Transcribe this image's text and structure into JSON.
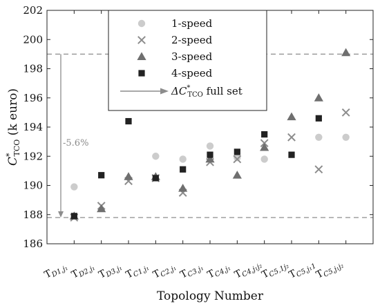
{
  "chart_data": {
    "type": "scatter",
    "xlabel": "Topology Number",
    "ylabel": {
      "main": "C",
      "sup": "*",
      "sub": "TCO",
      "unit": " (k euro)"
    },
    "ylim": [
      186,
      202
    ],
    "yticks": [
      186,
      188,
      190,
      192,
      194,
      196,
      198,
      200,
      202
    ],
    "grid": false,
    "legend_position": "top-center",
    "categories": [
      {
        "main": "T",
        "sub": "D1,j₁"
      },
      {
        "main": "T",
        "sub": "D2,j₁"
      },
      {
        "main": "T",
        "sub": "D3,j₁"
      },
      {
        "main": "T",
        "sub": "C1,j₁"
      },
      {
        "main": "T",
        "sub": "C2,j₁"
      },
      {
        "main": "T",
        "sub": "C3,j₁"
      },
      {
        "main": "T",
        "sub": "C4,j₁"
      },
      {
        "main": "T",
        "sub": "C4,j₁j₂"
      },
      {
        "main": "T",
        "sub": "C5,1j₂"
      },
      {
        "main": "T",
        "sub": "C5,j₁1"
      },
      {
        "main": "T",
        "sub": "C5,j₁j₂"
      }
    ],
    "series": [
      {
        "name": "1-speed",
        "marker": "circle",
        "color": "#cccccc",
        "values": [
          189.9,
          null,
          null,
          192.0,
          191.8,
          192.7,
          191.9,
          191.8,
          null,
          193.3,
          193.3
        ]
      },
      {
        "name": "2-speed",
        "marker": "x",
        "color": "#8c8c8c",
        "values": [
          187.8,
          188.6,
          190.3,
          190.5,
          189.5,
          191.6,
          191.8,
          192.9,
          193.3,
          191.1,
          195.0
        ]
      },
      {
        "name": "3-speed",
        "marker": "triangle",
        "color": "#6f6f6f",
        "values": [
          187.9,
          188.4,
          190.6,
          190.6,
          189.8,
          191.8,
          190.7,
          192.6,
          194.7,
          196.0,
          199.1
        ]
      },
      {
        "name": "4-speed",
        "marker": "square",
        "color": "#222222",
        "values": [
          187.9,
          190.7,
          194.4,
          190.5,
          191.1,
          192.1,
          192.3,
          193.5,
          192.1,
          194.6,
          null
        ]
      }
    ],
    "reference_lines": [
      199.0,
      187.8
    ],
    "annotation": {
      "label": "-5.6%",
      "from": 199.0,
      "to": 187.8,
      "legend_entry": {
        "main": "ΔC",
        "sup": "*",
        "sub": "TCO",
        "suffix": " full set"
      }
    }
  }
}
